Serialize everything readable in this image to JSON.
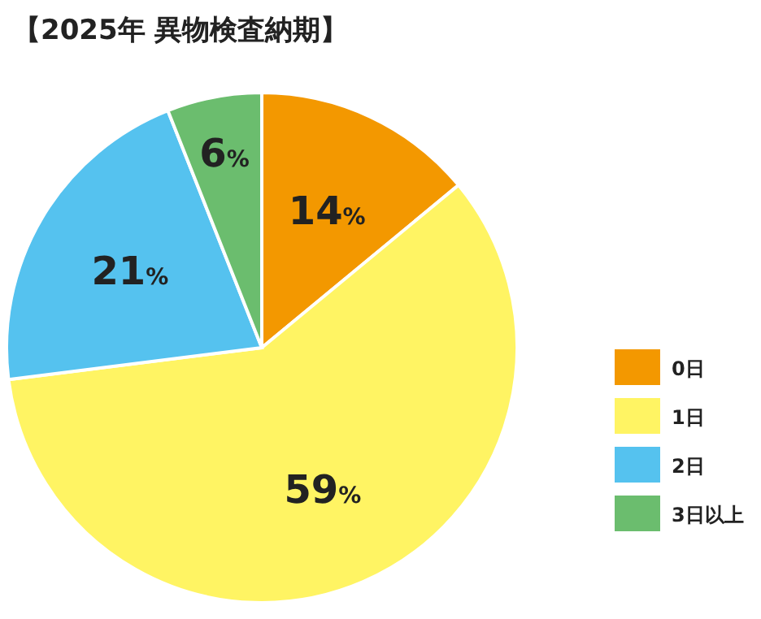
{
  "chart_data": {
    "type": "pie",
    "title": "【2025年 異物検査納期】",
    "categories": [
      "0日",
      "1日",
      "2日",
      "3日以上"
    ],
    "values": [
      14,
      59,
      21,
      6
    ],
    "colors": [
      "#f39800",
      "#fff463",
      "#55c2ef",
      "#6bbd6e"
    ],
    "value_labels": [
      "14%",
      "59%",
      "21%",
      "6%"
    ],
    "legend": "bottom right"
  }
}
